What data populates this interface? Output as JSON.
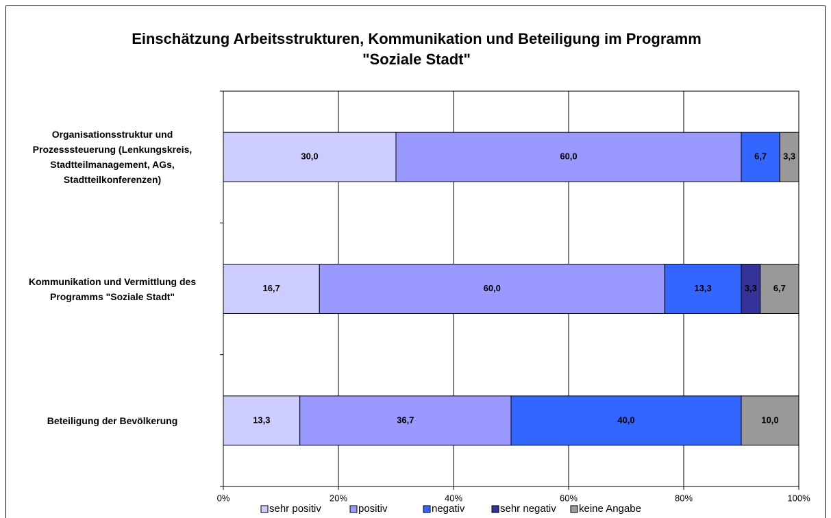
{
  "chart_data": {
    "type": "stacked-barh",
    "title": "Einschätzung Arbeitsstrukturen, Kommunikation und Beteiligung im Programm \"Soziale Stadt\"",
    "categories": [
      "Organisationsstruktur und Prozesssteuerung (Lenkungskreis, Stadtteilmanagement, AGs, Stadtteilkonferenzen)",
      "Kommunikation und Vermittlung des Programms \"Soziale Stadt\"",
      "Beteiligung der Bevölkerung"
    ],
    "series": [
      {
        "name": "sehr positiv",
        "color": "#CCCCFF",
        "values": [
          30.0,
          16.7,
          13.3
        ],
        "value_labels": [
          "30,0",
          "16,7",
          "13,3"
        ]
      },
      {
        "name": "positiv",
        "color": "#9999FF",
        "values": [
          60.0,
          60.0,
          36.7
        ],
        "value_labels": [
          "60,0",
          "60,0",
          "36,7"
        ]
      },
      {
        "name": "negativ",
        "color": "#3366FF",
        "values": [
          6.7,
          13.3,
          40.0
        ],
        "value_labels": [
          "6,7",
          "13,3",
          "40,0"
        ]
      },
      {
        "name": "sehr negativ",
        "color": "#333399",
        "values": [
          null,
          3.3,
          null
        ],
        "value_labels": [
          null,
          "3,3",
          null
        ]
      },
      {
        "name": "keine Angabe",
        "color": "#999999",
        "values": [
          3.3,
          6.7,
          10.0
        ],
        "value_labels": [
          "3,3",
          "6,7",
          "10,0"
        ]
      }
    ],
    "xlim": [
      0,
      100
    ],
    "xticks": [
      {
        "value": 0,
        "label": "0%"
      },
      {
        "value": 20,
        "label": "20%"
      },
      {
        "value": 40,
        "label": "40%"
      },
      {
        "value": 60,
        "label": "60%"
      },
      {
        "value": 80,
        "label": "80%"
      },
      {
        "value": 100,
        "label": "100%"
      }
    ],
    "grid": true,
    "legend": "bottom"
  }
}
